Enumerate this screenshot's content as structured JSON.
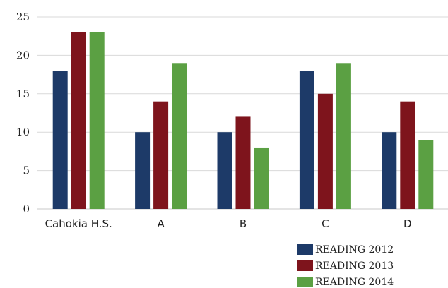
{
  "chart_data": {
    "type": "bar",
    "title": "",
    "xlabel": "",
    "ylabel": "",
    "categories": [
      "Cahokia H.S.",
      "A",
      "B",
      "C",
      "D"
    ],
    "series": [
      {
        "name": "READING 2012",
        "color": "#1d3a68",
        "values": [
          18,
          10,
          10,
          18,
          10
        ]
      },
      {
        "name": "READING 2013",
        "color": "#7e141c",
        "values": [
          23,
          14,
          12,
          15,
          14
        ]
      },
      {
        "name": "READING 2014",
        "color": "#5ba043",
        "values": [
          23,
          19,
          8,
          19,
          9
        ]
      }
    ],
    "ylim": [
      0,
      25
    ],
    "yticks": [
      0,
      5,
      10,
      15,
      20,
      25
    ],
    "grid": true,
    "legend_position": "bottom-right"
  }
}
